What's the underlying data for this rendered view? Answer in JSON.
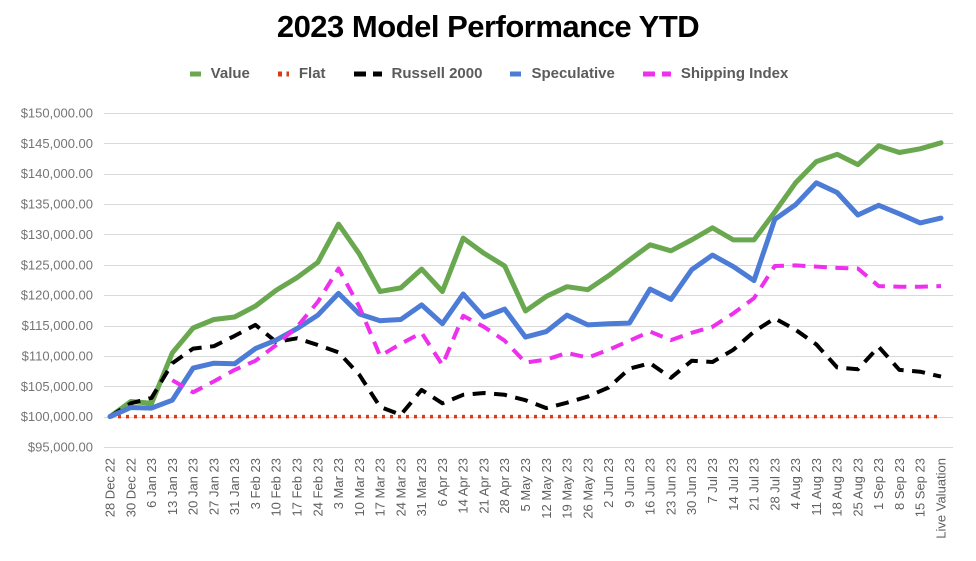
{
  "title": "2023 Model Performance YTD",
  "legend": [
    {
      "label": "Value",
      "color": "#6aa84f",
      "dash": "solid"
    },
    {
      "label": "Flat",
      "color": "#dc3912",
      "dash": "dotted"
    },
    {
      "label": "Russell 2000",
      "color": "#000000",
      "dash": "dashed"
    },
    {
      "label": "Speculative",
      "color": "#4d7cd6",
      "dash": "solid"
    },
    {
      "label": "Shipping Index",
      "color": "#ee2fee",
      "dash": "dashed"
    }
  ],
  "axes": {
    "y_tick_labels": [
      "$150,000.00",
      "$145,000.00",
      "$140,000.00",
      "$135,000.00",
      "$130,000.00",
      "$125,000.00",
      "$120,000.00",
      "$115,000.00",
      "$110,000.00",
      "$105,000.00",
      "$100,000.00",
      "$95,000.00"
    ],
    "y_tick_values": [
      150000,
      145000,
      140000,
      135000,
      130000,
      125000,
      120000,
      115000,
      110000,
      105000,
      100000,
      95000
    ]
  },
  "chart_data": {
    "type": "line",
    "title": "2023 Model Performance YTD",
    "xlabel": "",
    "ylabel": "",
    "ylim": [
      95000,
      150000
    ],
    "ytick_step": 5000,
    "grid": true,
    "legend_position": "top",
    "x": [
      "28 Dec 22",
      "30 Dec 22",
      "6 Jan 23",
      "13 Jan 23",
      "20 Jan 23",
      "27 Jan 23",
      "31 Jan 23",
      "3 Feb 23",
      "10 Feb 23",
      "17 Feb 23",
      "24 Feb 23",
      "3 Mar 23",
      "10 Mar 23",
      "17 Mar 23",
      "24 Mar 23",
      "31 Mar 23",
      "6 Apr 23",
      "14 Apr 23",
      "21 Apr 23",
      "28 Apr 23",
      "5 May 23",
      "12 May 23",
      "19 May 23",
      "26 May 23",
      "2 Jun 23",
      "9 Jun 23",
      "16 Jun 23",
      "23 Jun 23",
      "30 Jun 23",
      "7 Jul 23",
      "14 Jul 23",
      "21 Jul 23",
      "28 Jul 23",
      "4 Aug 23",
      "11 Aug 23",
      "18 Aug 23",
      "25 Aug 23",
      "1 Sep 23",
      "8 Sep 23",
      "15 Sep 23",
      "Live Valuation"
    ],
    "series": [
      {
        "name": "Value",
        "color": "#6aa84f",
        "dash": "solid",
        "values": [
          100000,
          102500,
          102200,
          110500,
          114600,
          116000,
          116400,
          118200,
          120800,
          122900,
          125400,
          131700,
          126800,
          120600,
          121200,
          124300,
          120600,
          129400,
          126900,
          124800,
          117400,
          119800,
          121400,
          120900,
          123200,
          125800,
          128300,
          127300,
          129100,
          131100,
          129100,
          129100,
          133700,
          138500,
          142000,
          143200,
          141500,
          144600,
          143500,
          144100,
          145100
        ]
      },
      {
        "name": "Flat",
        "color": "#dc3912",
        "dash": "dotted",
        "values": [
          100000,
          100000,
          100000,
          100000,
          100000,
          100000,
          100000,
          100000,
          100000,
          100000,
          100000,
          100000,
          100000,
          100000,
          100000,
          100000,
          100000,
          100000,
          100000,
          100000,
          100000,
          100000,
          100000,
          100000,
          100000,
          100000,
          100000,
          100000,
          100000,
          100000,
          100000,
          100000,
          100000,
          100000,
          100000,
          100000,
          100000,
          100000,
          100000,
          100000,
          100000
        ]
      },
      {
        "name": "Russell 2000",
        "color": "#000000",
        "dash": "dashed",
        "values": [
          100000,
          102200,
          103100,
          108800,
          111200,
          111600,
          113300,
          115100,
          112300,
          112900,
          111800,
          110600,
          106900,
          101600,
          100300,
          104400,
          102200,
          103600,
          103900,
          103600,
          102700,
          101400,
          102300,
          103300,
          104800,
          107900,
          108800,
          106400,
          109200,
          109000,
          111000,
          114000,
          116200,
          114300,
          111900,
          108100,
          107800,
          111500,
          107700,
          107400,
          106600
        ]
      },
      {
        "name": "Speculative",
        "color": "#4d7cd6",
        "dash": "solid",
        "values": [
          100000,
          101500,
          101400,
          102700,
          108000,
          108800,
          108700,
          111200,
          112600,
          114500,
          116700,
          120300,
          116900,
          115800,
          116000,
          118400,
          115300,
          120200,
          116400,
          117700,
          113100,
          114000,
          116700,
          115100,
          115300,
          115400,
          121000,
          119300,
          124200,
          126600,
          124700,
          122400,
          132500,
          134900,
          138500,
          136900,
          133200,
          134800,
          133400,
          131900,
          132700
        ]
      },
      {
        "name": "Shipping Index",
        "color": "#ee2fee",
        "dash": "dashed",
        "values": [
          null,
          null,
          null,
          106000,
          104000,
          105800,
          107700,
          109200,
          111800,
          114800,
          118900,
          124400,
          118100,
          110000,
          112000,
          113800,
          108500,
          116600,
          114800,
          112500,
          108900,
          109400,
          110500,
          109700,
          111000,
          112500,
          114000,
          112600,
          113800,
          114800,
          117000,
          119500,
          124800,
          124900,
          124700,
          124500,
          124400,
          121500,
          121400,
          121400,
          121500
        ]
      }
    ]
  },
  "colors": {
    "gridline": "#d9d9d9",
    "title_text": "#000000",
    "y_tick_text": "#757575",
    "x_tick_text": "#5f5f5f",
    "legend_text": "#5b5b5b",
    "background": "#ffffff"
  }
}
